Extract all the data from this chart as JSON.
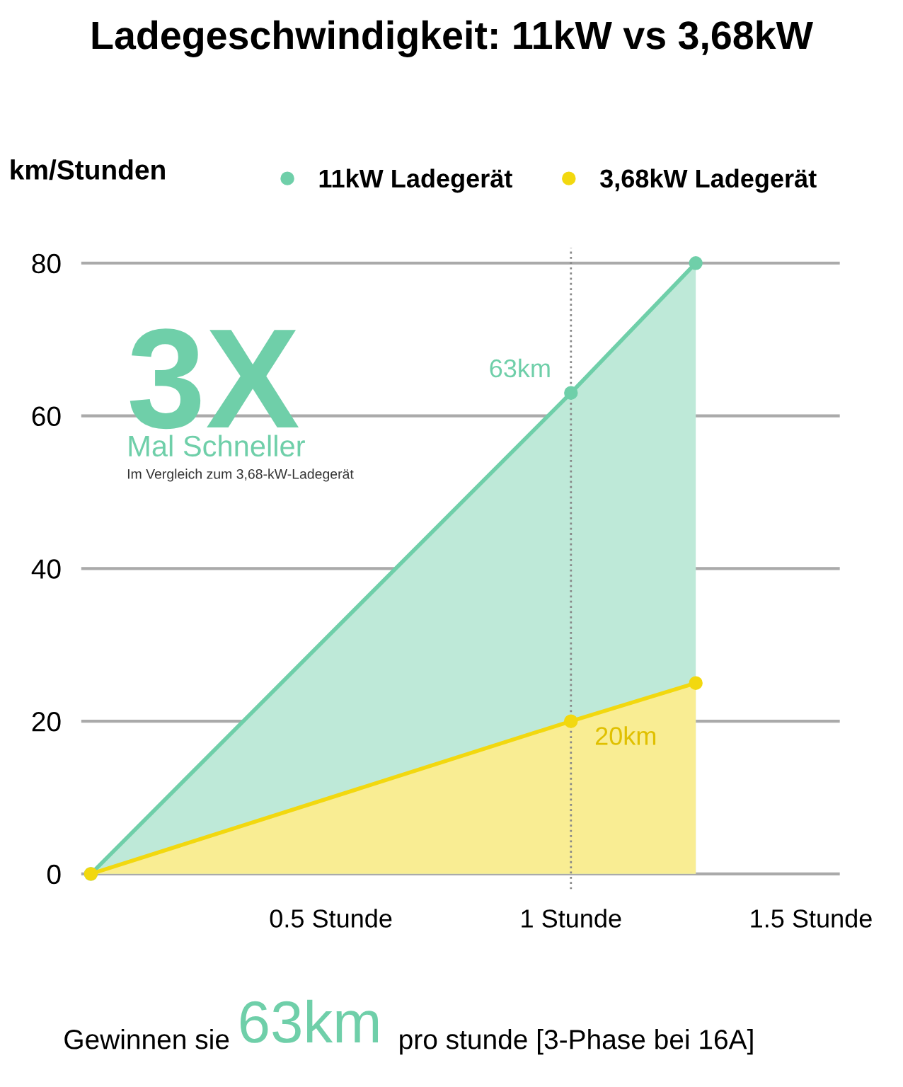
{
  "chart_data": {
    "type": "area",
    "title": "Ladegeschwindigkeit: 11kW vs 3,68kW",
    "ylabel": "km/Stunden",
    "series": [
      {
        "name": "11kW Ladegerät",
        "color": "#6fcfa9",
        "x": [
          0,
          1,
          1.26
        ],
        "values": [
          0,
          63,
          80
        ]
      },
      {
        "name": "3,68kW Ladegerät",
        "color": "#f2d80f",
        "x": [
          0,
          1,
          1.26
        ],
        "values": [
          0,
          20,
          25
        ]
      }
    ],
    "xlim": [
      -0.02,
      1.56
    ],
    "xticks": [
      {
        "value": 0.5,
        "label": "0.5 Stunde"
      },
      {
        "value": 1,
        "label": "1 Stunde"
      },
      {
        "value": 1.5,
        "label": "1.5 Stunde"
      }
    ],
    "ylim": [
      -2,
      82
    ],
    "yticks": [
      0,
      20,
      40,
      60,
      80
    ],
    "ref_lines": [
      {
        "axis": "x",
        "value": 1,
        "line_style": "dotted",
        "color": "#888888"
      }
    ],
    "annotations": [
      {
        "text": "63km",
        "x": 1,
        "y": 63
      },
      {
        "text": "20km",
        "x": 1,
        "y": 20
      },
      "3X",
      "Mal Schneller",
      "Im Vergleich zum 3,68-kW-Ladegerät",
      "Gewinnen sie",
      "63km",
      "pro stunde [3-Phase bei 16A]"
    ],
    "grid": "y",
    "legend": "top right",
    "marker": "circle",
    "line_style": "solid"
  }
}
